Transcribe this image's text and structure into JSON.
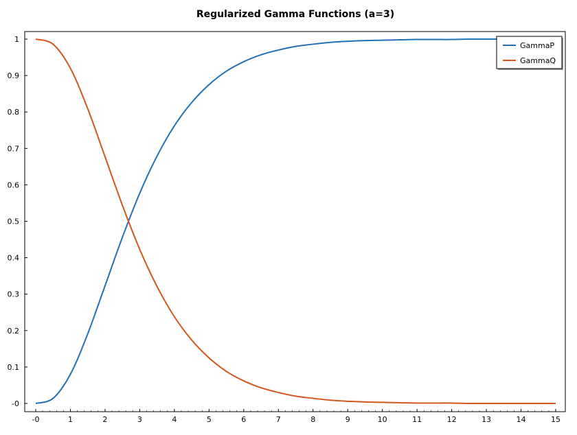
{
  "chart_data": {
    "type": "line",
    "title": "Regularized Gamma Functions (a=3)",
    "xlabel": "",
    "ylabel": "",
    "xlim": [
      0,
      15
    ],
    "ylim": [
      0,
      1
    ],
    "x_ticks": [
      0,
      1,
      2,
      3,
      4,
      5,
      6,
      7,
      8,
      9,
      10,
      11,
      12,
      13,
      14,
      15
    ],
    "x_tick_labels": [
      "-0",
      "1",
      "2",
      "3",
      "4",
      "5",
      "6",
      "7",
      "8",
      "9",
      "10",
      "11",
      "12",
      "13",
      "14",
      "15"
    ],
    "y_ticks": [
      0,
      0.1,
      0.2,
      0.3,
      0.4,
      0.5,
      0.6,
      0.7,
      0.8,
      0.9,
      1
    ],
    "y_tick_labels": [
      "-0",
      "0.1",
      "0.2",
      "0.3",
      "0.4",
      "0.5",
      "0.6",
      "0.7",
      "0.8",
      "0.9",
      "1"
    ],
    "grid": false,
    "legend_position": "top-right",
    "x": [
      0,
      0.5,
      1,
      1.5,
      2,
      2.5,
      3,
      3.5,
      4,
      4.5,
      5,
      5.5,
      6,
      6.5,
      7,
      7.5,
      8,
      8.5,
      9,
      9.5,
      10,
      10.5,
      11,
      11.5,
      12,
      12.5,
      13,
      13.5,
      14,
      14.5,
      15
    ],
    "series": [
      {
        "name": "GammaP",
        "color": "#1f6fb5",
        "values": [
          0,
          0.014,
          0.08,
          0.191,
          0.323,
          0.456,
          0.577,
          0.679,
          0.762,
          0.826,
          0.875,
          0.912,
          0.938,
          0.957,
          0.97,
          0.98,
          0.986,
          0.991,
          0.994,
          0.996,
          0.997,
          0.998,
          0.999,
          0.999,
          0.999,
          1.0,
          1.0,
          1.0,
          1.0,
          1.0,
          1.0
        ]
      },
      {
        "name": "GammaQ",
        "color": "#d4551c",
        "values": [
          1,
          0.986,
          0.92,
          0.809,
          0.677,
          0.544,
          0.423,
          0.321,
          0.238,
          0.174,
          0.125,
          0.088,
          0.062,
          0.043,
          0.03,
          0.02,
          0.014,
          0.009,
          0.006,
          0.004,
          0.003,
          0.002,
          0.001,
          0.001,
          0.001,
          0.0,
          0.0,
          0.0,
          0.0,
          0.0,
          0.0
        ]
      }
    ]
  }
}
